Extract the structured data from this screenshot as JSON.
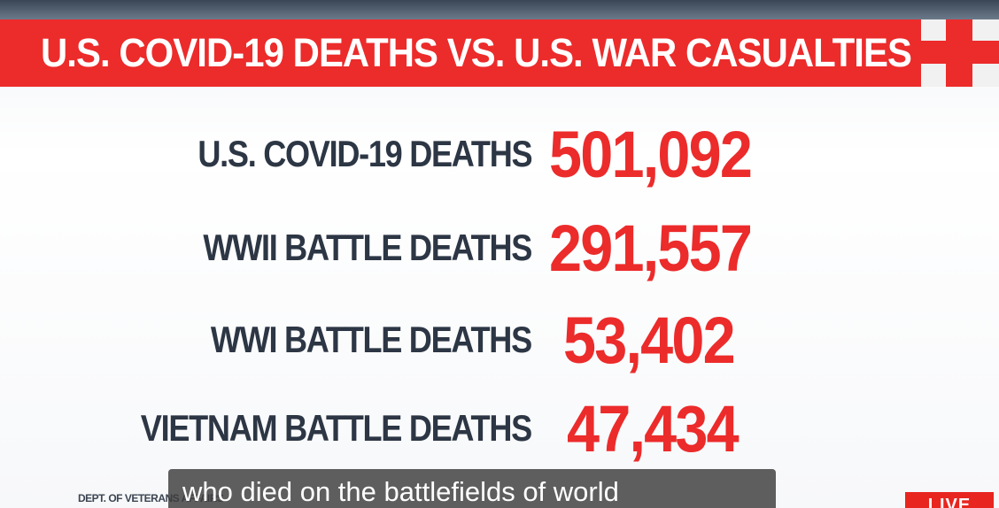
{
  "banner": {
    "title": "U.S. COVID-19 DEATHS VS. U.S. WAR CASUALTIES"
  },
  "rows": [
    {
      "label": "U.S. COVID-19 DEATHS",
      "value": "501,092"
    },
    {
      "label": "WWII BATTLE DEATHS",
      "value": "291,557"
    },
    {
      "label": "WWI BATTLE DEATHS",
      "value": "53,402"
    },
    {
      "label": "VIETNAM BATTLE DEATHS",
      "value": "47,434"
    }
  ],
  "source": "DEPT. OF VETERANS AFFAIRS",
  "caption": "who died on the battlefields of world",
  "live_badge": "LIVE",
  "colors": {
    "accent_red": "#ec2b2b",
    "label_navy": "#2c3644",
    "background": "#ffffff"
  }
}
